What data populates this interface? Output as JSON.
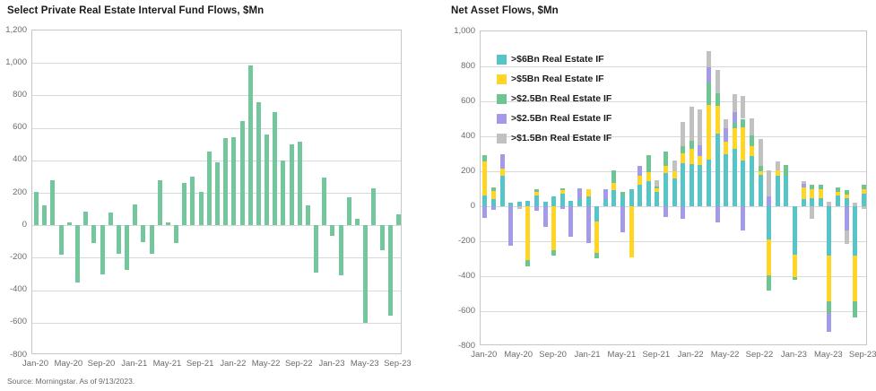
{
  "page": {
    "source_note": "Source: Morningstar. As of 9/13/2023."
  },
  "chart_data": [
    {
      "type": "bar",
      "title": "Select Private Real Estate Interval Fund Flows, $Mn",
      "xlabel": "",
      "ylabel": "",
      "ylim": [
        -800,
        1200
      ],
      "ytick_step": 200,
      "grid": true,
      "bar_color": "#74c79c",
      "x_label_every": 4,
      "categories": [
        "Jan-20",
        "Feb-20",
        "Mar-20",
        "Apr-20",
        "May-20",
        "Jun-20",
        "Jul-20",
        "Aug-20",
        "Sep-20",
        "Oct-20",
        "Nov-20",
        "Dec-20",
        "Jan-21",
        "Feb-21",
        "Mar-21",
        "Apr-21",
        "May-21",
        "Jun-21",
        "Jul-21",
        "Aug-21",
        "Sep-21",
        "Oct-21",
        "Nov-21",
        "Dec-21",
        "Jan-22",
        "Feb-22",
        "Mar-22",
        "Apr-22",
        "May-22",
        "Jun-22",
        "Jul-22",
        "Aug-22",
        "Sep-22",
        "Oct-22",
        "Nov-22",
        "Dec-22",
        "Jan-23",
        "Feb-23",
        "Mar-23",
        "Apr-23",
        "May-23",
        "Jun-23",
        "Jul-23",
        "Aug-23",
        "Sep-23"
      ],
      "values": [
        205,
        125,
        280,
        -180,
        15,
        -350,
        85,
        -110,
        -305,
        80,
        -175,
        -275,
        130,
        -105,
        -175,
        280,
        15,
        -110,
        260,
        300,
        205,
        455,
        390,
        535,
        545,
        640,
        985,
        760,
        560,
        700,
        400,
        500,
        515,
        125,
        -290,
        295,
        -65,
        -310,
        175,
        40,
        -600,
        225,
        -155,
        -555,
        65
      ]
    },
    {
      "type": "stacked-bar",
      "title": "Net Asset Flows, $Mn",
      "xlabel": "",
      "ylabel": "",
      "ylim": [
        -800,
        1000
      ],
      "ytick_step": 200,
      "grid": true,
      "legend_position": "top-left",
      "x_label_every": 4,
      "categories": [
        "Jan-20",
        "Feb-20",
        "Mar-20",
        "Apr-20",
        "May-20",
        "Jun-20",
        "Jul-20",
        "Aug-20",
        "Sep-20",
        "Oct-20",
        "Nov-20",
        "Dec-20",
        "Jan-21",
        "Feb-21",
        "Mar-21",
        "Apr-21",
        "May-21",
        "Jun-21",
        "Jul-21",
        "Aug-21",
        "Sep-21",
        "Oct-21",
        "Nov-21",
        "Dec-21",
        "Jan-22",
        "Feb-22",
        "Mar-22",
        "Apr-22",
        "May-22",
        "Jun-22",
        "Jul-22",
        "Aug-22",
        "Sep-22",
        "Oct-22",
        "Nov-22",
        "Dec-22",
        "Jan-23",
        "Feb-23",
        "Mar-23",
        "Apr-23",
        "May-23",
        "Jun-23",
        "Jul-23",
        "Aug-23",
        "Sep-23"
      ],
      "series": [
        {
          "name": ">$6Bn Real Estate IF",
          "color": "#57c5c7",
          "values": [
            60,
            40,
            175,
            20,
            25,
            30,
            60,
            25,
            55,
            70,
            30,
            40,
            55,
            -85,
            40,
            90,
            55,
            100,
            125,
            145,
            80,
            190,
            160,
            245,
            240,
            235,
            265,
            415,
            295,
            330,
            260,
            285,
            180,
            -190,
            175,
            175,
            -275,
            40,
            48,
            48,
            -280,
            60,
            48,
            -280,
            70
          ]
        },
        {
          "name": ">$5Bn Real Estate IF",
          "color": "#ffd626",
          "values": [
            195,
            45,
            40,
            0,
            0,
            -310,
            20,
            0,
            -250,
            20,
            0,
            0,
            45,
            -180,
            0,
            45,
            0,
            -290,
            50,
            50,
            25,
            40,
            40,
            60,
            90,
            50,
            315,
            160,
            75,
            115,
            190,
            60,
            20,
            -205,
            30,
            0,
            -130,
            70,
            48,
            51,
            -265,
            20,
            20,
            -265,
            25
          ]
        },
        {
          "name": ">$2.5Bn Real Estate IF",
          "color": "#6ec592",
          "values": [
            35,
            25,
            0,
            0,
            0,
            -35,
            15,
            0,
            -30,
            15,
            0,
            0,
            0,
            -35,
            0,
            70,
            25,
            0,
            0,
            95,
            10,
            85,
            0,
            40,
            45,
            0,
            130,
            70,
            0,
            30,
            50,
            60,
            30,
            -85,
            0,
            60,
            -15,
            0,
            26,
            26,
            -65,
            30,
            22,
            -90,
            30
          ]
        },
        {
          "name": ">$2.5Bn Real Estate IF",
          "color": "#a49be8",
          "values": [
            -65,
            -20,
            85,
            -225,
            0,
            0,
            -25,
            -120,
            0,
            -15,
            -175,
            65,
            -210,
            0,
            55,
            0,
            -150,
            0,
            55,
            0,
            0,
            -60,
            0,
            -70,
            0,
            65,
            85,
            -90,
            75,
            65,
            -140,
            0,
            0,
            55,
            0,
            0,
            0,
            20,
            0,
            0,
            -110,
            0,
            -140,
            0,
            0
          ]
        },
        {
          "name": ">$1.5Bn Real Estate IF",
          "color": "#c1c1c1",
          "values": [
            0,
            0,
            0,
            0,
            -15,
            0,
            0,
            0,
            0,
            0,
            0,
            0,
            0,
            0,
            0,
            0,
            0,
            0,
            0,
            0,
            35,
            0,
            60,
            135,
            195,
            205,
            90,
            135,
            55,
            100,
            130,
            100,
            155,
            150,
            50,
            0,
            0,
            12,
            -70,
            0,
            25,
            0,
            -75,
            20,
            -15
          ]
        }
      ]
    }
  ],
  "layout_note": "dual panel fund-flow report"
}
